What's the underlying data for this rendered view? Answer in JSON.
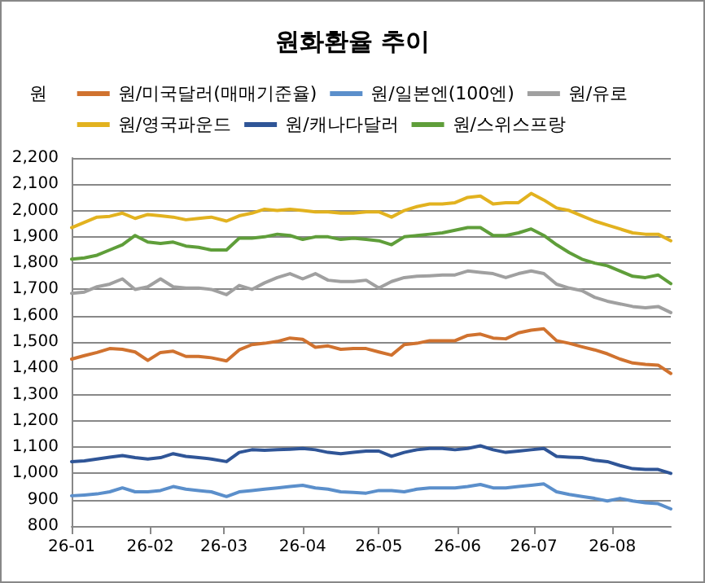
{
  "chart_data": {
    "type": "line",
    "title": "원화환율 추이",
    "ylabel": "원",
    "x": [
      "--01-01",
      "--01-06",
      "--01-11",
      "--01-16",
      "--01-21",
      "--01-26",
      "--01-31",
      "--02-05",
      "--02-10",
      "--02-15",
      "--02-20",
      "--02-25",
      "--03-02",
      "--03-07",
      "--03-12",
      "--03-17",
      "--03-22",
      "--03-27",
      "--04-01",
      "--04-06",
      "--04-11",
      "--04-16",
      "--04-21",
      "--04-26",
      "--05-01",
      "--05-06",
      "--05-11",
      "--05-16",
      "--05-21",
      "--05-26",
      "--05-31",
      "--06-05",
      "--06-10",
      "--06-15",
      "--06-20",
      "--06-25",
      "--06-30",
      "--07-05",
      "--07-10",
      "--07-15",
      "--07-20",
      "--07-25",
      "--07-30",
      "--08-04",
      "--08-09",
      "--08-14",
      "--08-19",
      "--08-24"
    ],
    "series": [
      {
        "name": "원/미국달러(매매기준율)",
        "color": "#d0722f",
        "values": [
          1435,
          1448,
          1460,
          1475,
          1472,
          1462,
          1430,
          1460,
          1465,
          1445,
          1445,
          1440,
          1428,
          1470,
          1490,
          1495,
          1502,
          1515,
          1510,
          1480,
          1485,
          1472,
          1475,
          1475,
          1462,
          1450,
          1490,
          1495,
          1505,
          1505,
          1505,
          1525,
          1530,
          1515,
          1512,
          1535,
          1545,
          1550,
          1505,
          1495,
          1482,
          1470,
          1455,
          1435,
          1420,
          1415,
          1412,
          1380
        ]
      },
      {
        "name": "원/일본엔(100엔)",
        "color": "#5b8fcb",
        "values": [
          915,
          918,
          922,
          930,
          945,
          930,
          930,
          935,
          950,
          940,
          935,
          930,
          912,
          930,
          935,
          940,
          945,
          950,
          955,
          945,
          940,
          930,
          928,
          925,
          935,
          935,
          930,
          940,
          945,
          945,
          945,
          950,
          958,
          945,
          945,
          950,
          955,
          960,
          930,
          920,
          912,
          905,
          895,
          905,
          895,
          888,
          885,
          865
        ]
      },
      {
        "name": "원/유로",
        "color": "#a0a0a0",
        "values": [
          1685,
          1690,
          1710,
          1720,
          1740,
          1700,
          1710,
          1740,
          1710,
          1705,
          1705,
          1700,
          1680,
          1715,
          1700,
          1725,
          1745,
          1760,
          1740,
          1760,
          1735,
          1730,
          1730,
          1735,
          1705,
          1730,
          1745,
          1750,
          1752,
          1755,
          1755,
          1770,
          1765,
          1760,
          1745,
          1760,
          1770,
          1760,
          1720,
          1705,
          1695,
          1670,
          1655,
          1645,
          1635,
          1630,
          1635,
          1612
        ]
      },
      {
        "name": "원/영국파운드",
        "color": "#e2b21f",
        "values": [
          1935,
          1955,
          1975,
          1978,
          1990,
          1970,
          1985,
          1980,
          1975,
          1965,
          1970,
          1975,
          1960,
          1980,
          1990,
          2005,
          2000,
          2005,
          2000,
          1995,
          1995,
          1990,
          1990,
          1995,
          1995,
          1975,
          2000,
          2015,
          2025,
          2025,
          2030,
          2050,
          2055,
          2025,
          2030,
          2030,
          2065,
          2040,
          2010,
          2000,
          1980,
          1960,
          1945,
          1930,
          1915,
          1910,
          1910,
          1885
        ]
      },
      {
        "name": "원/캐나다달러",
        "color": "#2f5597",
        "values": [
          1045,
          1048,
          1055,
          1062,
          1068,
          1060,
          1055,
          1060,
          1075,
          1065,
          1060,
          1055,
          1045,
          1080,
          1090,
          1088,
          1090,
          1092,
          1095,
          1090,
          1080,
          1075,
          1080,
          1085,
          1085,
          1065,
          1080,
          1090,
          1095,
          1095,
          1090,
          1095,
          1105,
          1090,
          1080,
          1085,
          1090,
          1095,
          1065,
          1062,
          1060,
          1050,
          1045,
          1030,
          1018,
          1015,
          1015,
          1000
        ]
      },
      {
        "name": "원/스위스프랑",
        "color": "#5f9e3a",
        "values": [
          1815,
          1820,
          1830,
          1850,
          1870,
          1905,
          1880,
          1875,
          1880,
          1865,
          1860,
          1850,
          1850,
          1895,
          1895,
          1900,
          1910,
          1905,
          1890,
          1900,
          1900,
          1890,
          1895,
          1890,
          1885,
          1870,
          1900,
          1905,
          1910,
          1915,
          1925,
          1935,
          1935,
          1905,
          1905,
          1915,
          1930,
          1905,
          1870,
          1840,
          1815,
          1800,
          1790,
          1770,
          1750,
          1745,
          1755,
          1722
        ]
      }
    ],
    "xlim": [
      "--01-01",
      "--08-24"
    ],
    "xticks": [
      {
        "value": "--01-01",
        "label": "26-01"
      },
      {
        "value": "--02-01",
        "label": "26-02"
      },
      {
        "value": "--03-01",
        "label": "26-03"
      },
      {
        "value": "--04-01",
        "label": "26-04"
      },
      {
        "value": "--05-01",
        "label": "26-05"
      },
      {
        "value": "--06-01",
        "label": "26-06"
      },
      {
        "value": "--07-01",
        "label": "26-07"
      },
      {
        "value": "--08-01",
        "label": "26-08"
      }
    ],
    "ylim": [
      800,
      2200
    ],
    "yticks": [
      800,
      900,
      {
        "value": 1000,
        "label": "1,000"
      },
      {
        "value": 1100,
        "label": "1,100"
      },
      {
        "value": 1200,
        "label": "1,200"
      },
      {
        "value": 1300,
        "label": "1,300"
      },
      {
        "value": 1400,
        "label": "1,400"
      },
      {
        "value": 1500,
        "label": "1,500"
      },
      {
        "value": 1600,
        "label": "1,600"
      },
      {
        "value": 1700,
        "label": "1,700"
      },
      {
        "value": 1800,
        "label": "1,800"
      },
      {
        "value": 1900,
        "label": "1,900"
      },
      {
        "value": 2000,
        "label": "2,000"
      },
      {
        "value": 2100,
        "label": "2,100"
      },
      {
        "value": 2200,
        "label": "2,200"
      }
    ],
    "grid": "y",
    "legend": "top",
    "marker": "none",
    "line_style": "solid"
  }
}
